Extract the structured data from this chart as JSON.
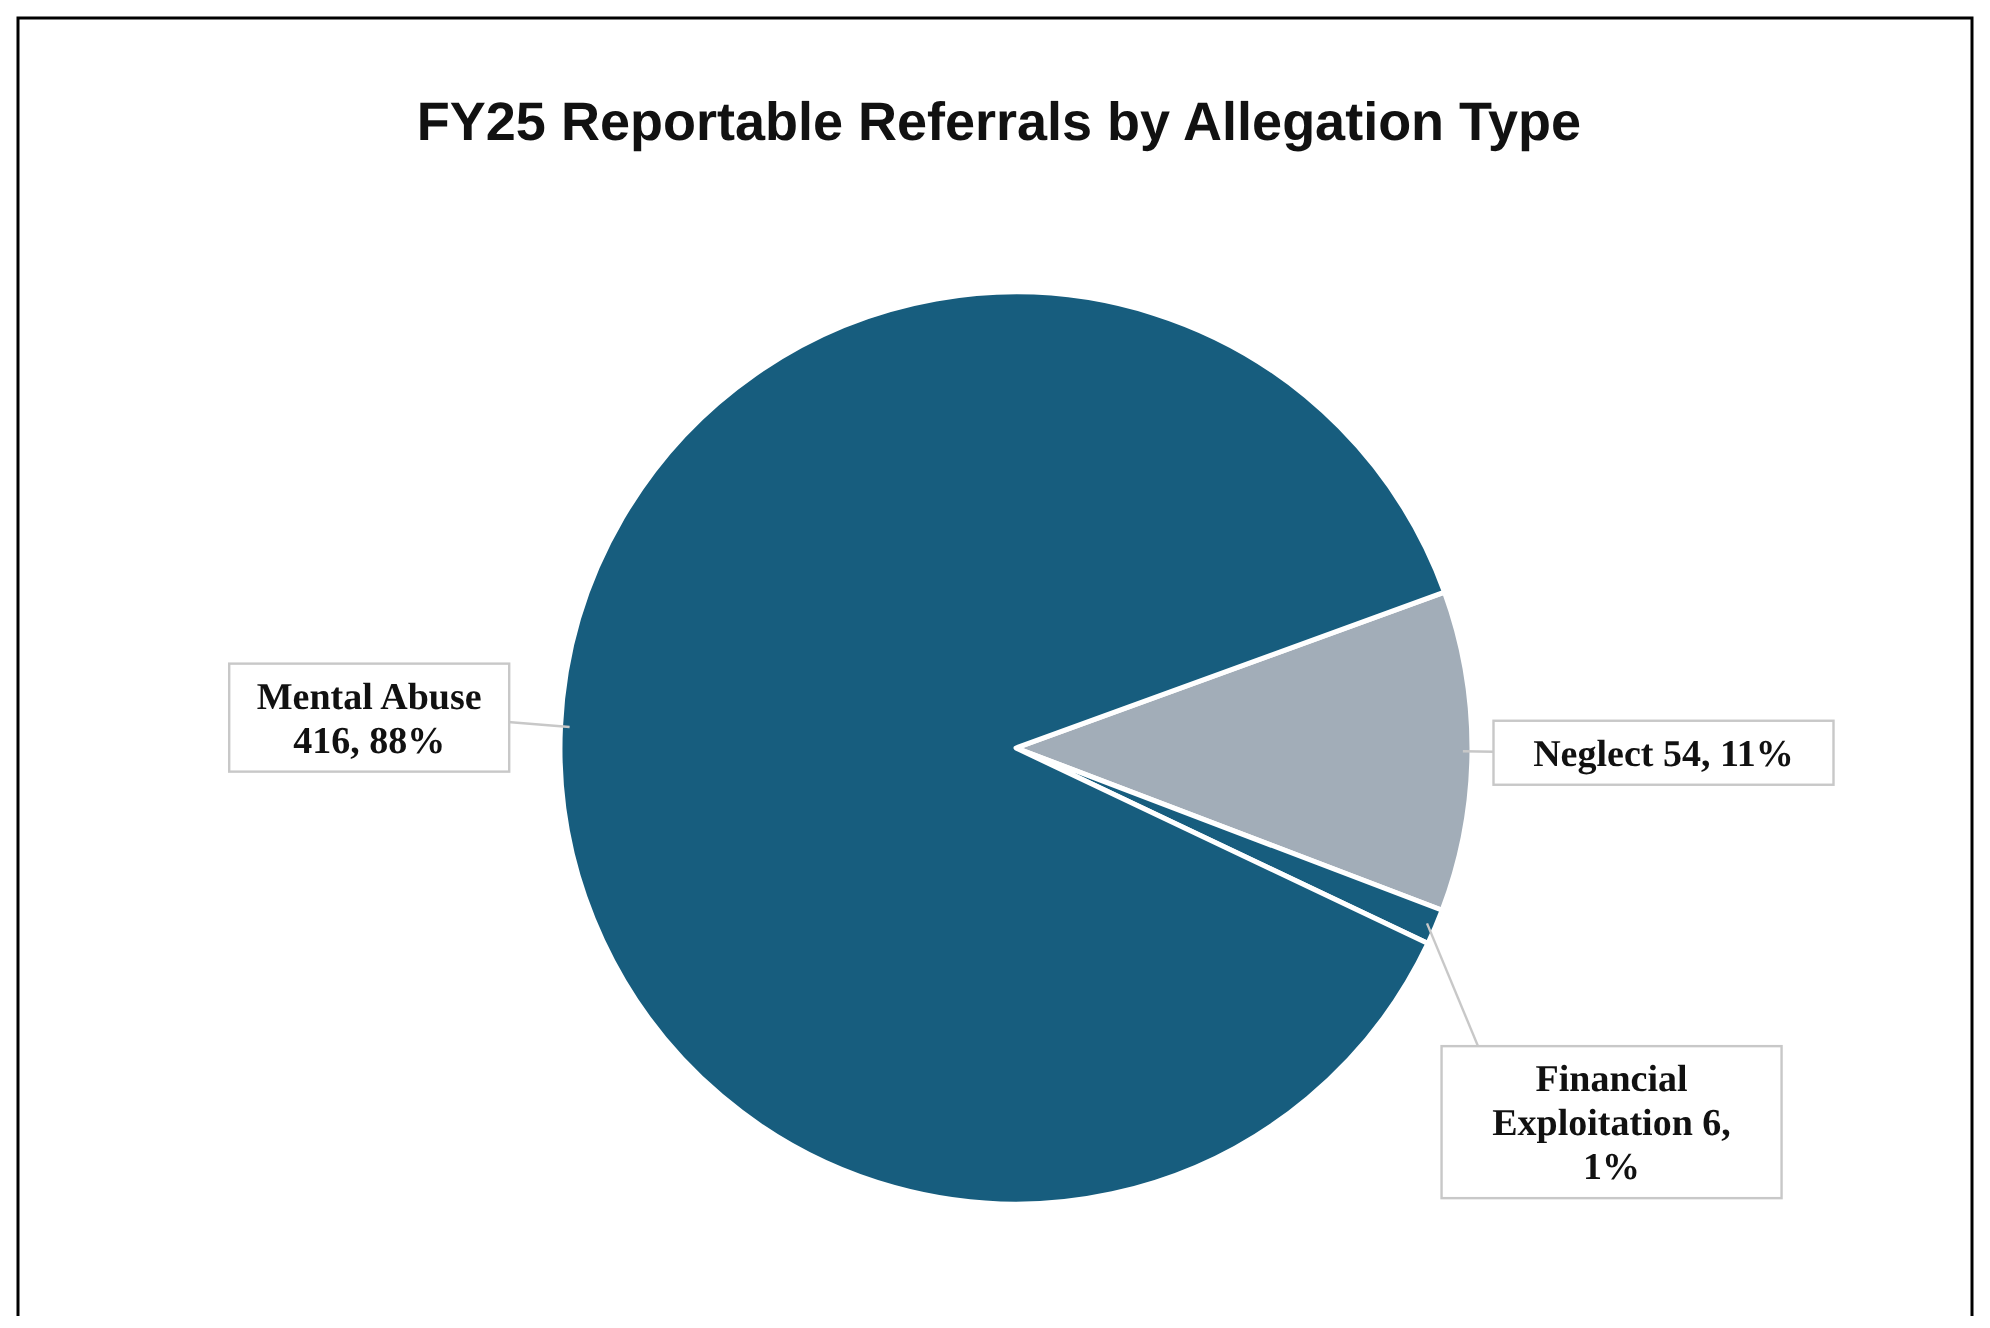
{
  "chart_data": {
    "type": "pie",
    "title": "FY25 Reportable Referrals by Allegation Type",
    "categories": [
      "Neglect",
      "Financial Exploitation",
      "Mental Abuse"
    ],
    "values": [
      54,
      6,
      416
    ],
    "colors": [
      "#a2adb8",
      "#175d7e",
      "#175d7e"
    ],
    "value_labels": [
      "54, 11%",
      "6, 1%",
      "416, 88%"
    ]
  }
}
